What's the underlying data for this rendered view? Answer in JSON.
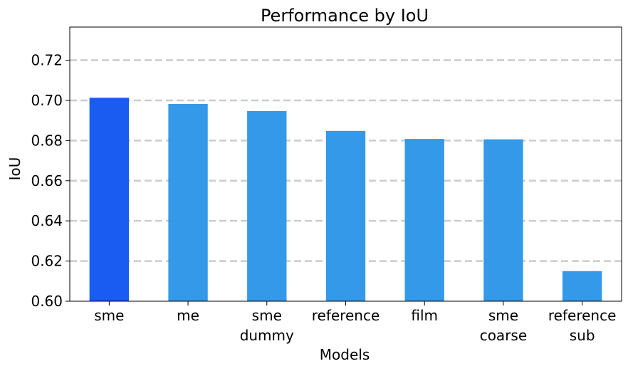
{
  "chart_data": {
    "type": "bar",
    "title": "Performance by IoU",
    "xlabel": "Models",
    "ylabel": "IoU",
    "categories": [
      [
        "sme"
      ],
      [
        "me"
      ],
      [
        "sme",
        "dummy"
      ],
      [
        "reference"
      ],
      [
        "film"
      ],
      [
        "sme",
        "coarse"
      ],
      [
        "reference",
        "sub"
      ]
    ],
    "values": [
      0.7013,
      0.6982,
      0.6947,
      0.6848,
      0.6808,
      0.6806,
      0.615
    ],
    "highlight_index": 0,
    "colors": {
      "highlight": "#1a5cf2",
      "bar": "#3399e8",
      "grid": "#cccccc"
    },
    "ylim": [
      0.6,
      0.7365
    ],
    "yticks": [
      "0.60",
      "0.62",
      "0.64",
      "0.66",
      "0.68",
      "0.70",
      "0.72"
    ],
    "grid": "horizontal dashed",
    "legend": "none"
  }
}
